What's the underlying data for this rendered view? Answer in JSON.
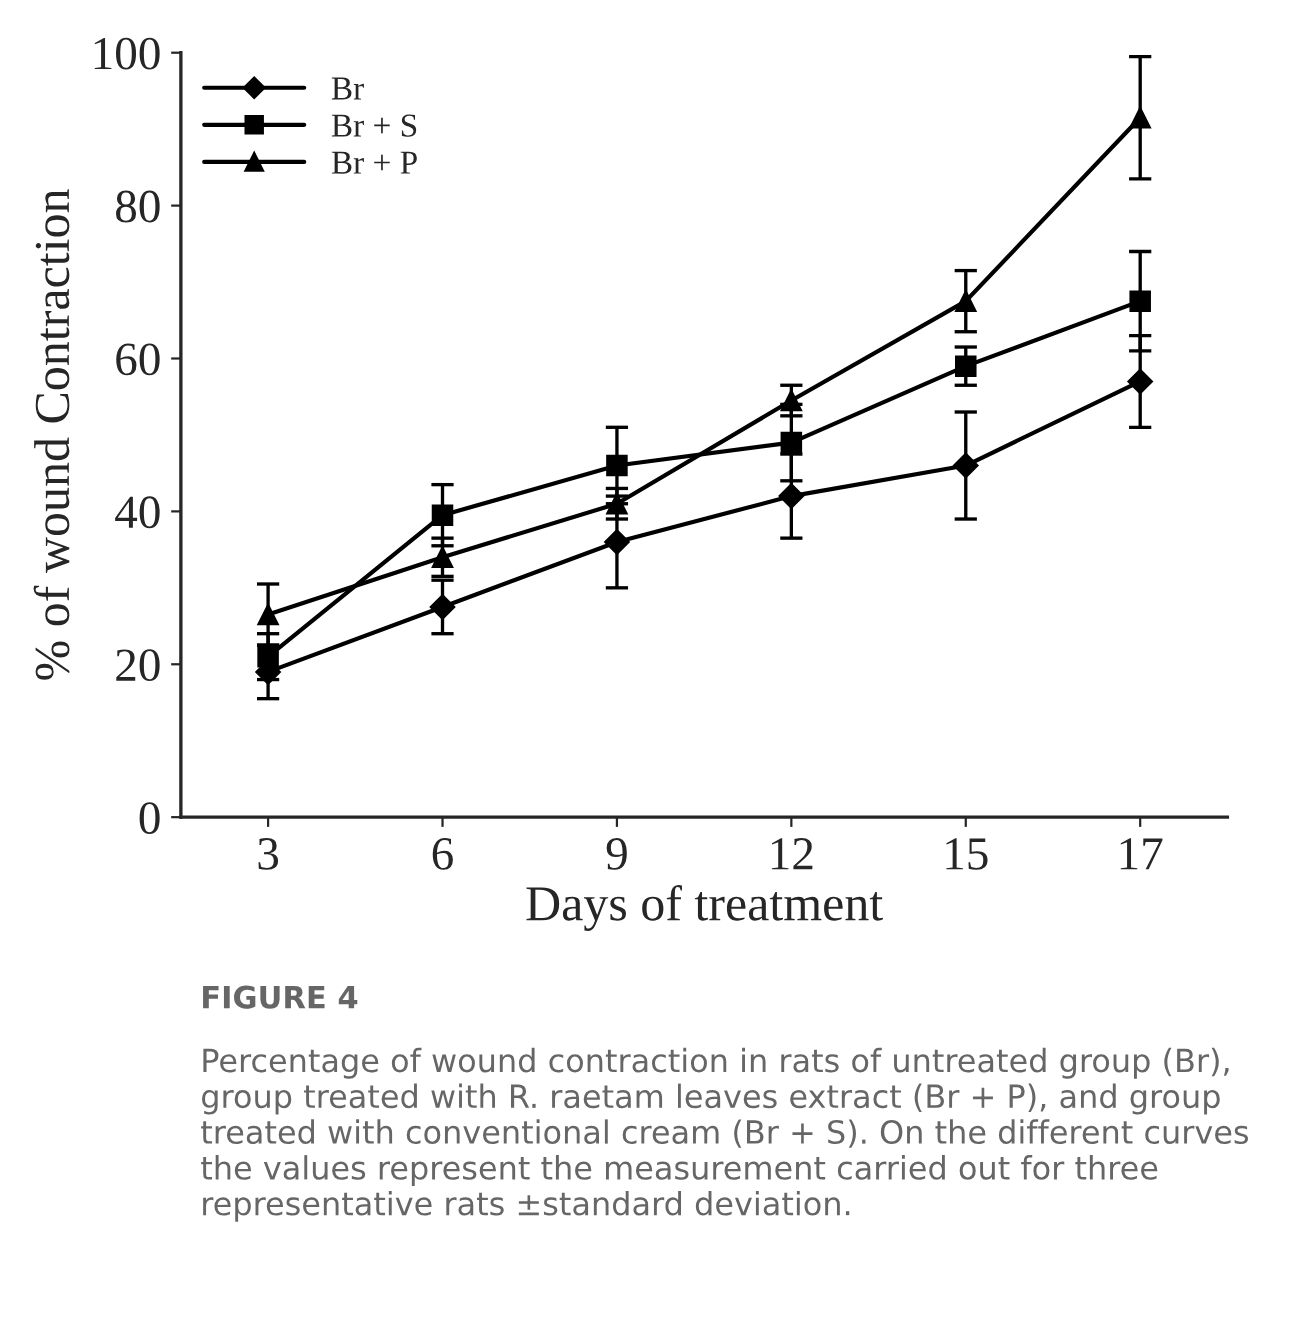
{
  "chart_data": {
    "type": "line",
    "xlabel": "Days of treatment",
    "ylabel": "% of wound Contraction",
    "categories": [
      "3",
      "6",
      "9",
      "12",
      "15",
      "17"
    ],
    "series": [
      {
        "name": "Br",
        "color": "#000000",
        "marker": "diamond",
        "values": [
          19,
          27.5,
          36,
          42,
          46,
          57
        ],
        "errors": [
          3.5,
          3.5,
          6,
          5.5,
          7,
          6
        ]
      },
      {
        "name": "Br + S",
        "color": "#000000",
        "marker": "square",
        "values": [
          21,
          39.5,
          46,
          49,
          59,
          67.5
        ],
        "errors": [
          3,
          4,
          5,
          5,
          2.5,
          6.5
        ]
      },
      {
        "name": "Br + P",
        "color": "#000000",
        "marker": "triangle",
        "values": [
          26.5,
          34,
          41,
          54.5,
          67.5,
          91.5
        ],
        "errors": [
          4,
          2.5,
          2,
          2,
          4,
          8
        ]
      }
    ],
    "ylim": [
      0,
      100
    ],
    "yticks": [
      0,
      20,
      40,
      60,
      80,
      100
    ],
    "grid": false,
    "legend": "top left",
    "line_style": "solid",
    "annotations": [
      "FIGURE 4",
      "Percentage of wound contraction in rats of untreated group (Br), group treated with R. raetam leaves extract (Br + P), and group treated with conventional cream (Br + S). On the different curves the values represent the measurement carried out for three representative rats ±standard deviation."
    ]
  }
}
